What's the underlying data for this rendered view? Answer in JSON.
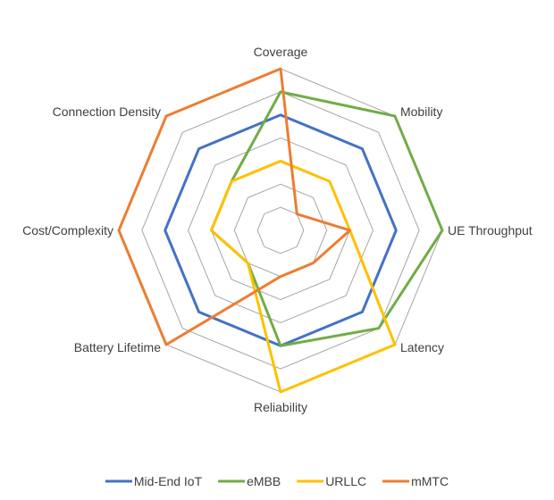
{
  "chart_data": {
    "type": "radar",
    "title": "",
    "axes": [
      "Coverage",
      "Mobility",
      "UE Throughput",
      "Latency",
      "Reliability",
      "Battery Lifetime",
      "Cost/Complexity",
      "Connection Density"
    ],
    "range": [
      0,
      7
    ],
    "rings": 7,
    "grid": true,
    "legend_position": "bottom",
    "series": [
      {
        "name": "Mid-End IoT",
        "color": "#4472C4",
        "values": [
          5,
          5,
          5,
          5,
          5,
          5,
          5,
          5
        ]
      },
      {
        "name": "eMBB",
        "color": "#70AD47",
        "values": [
          6,
          7,
          7,
          6,
          5,
          2,
          3,
          3
        ]
      },
      {
        "name": "URLLC",
        "color": "#FFC000",
        "values": [
          3,
          3,
          3,
          7,
          7,
          2,
          3,
          3
        ]
      },
      {
        "name": "mMTC",
        "color": "#ED7D31",
        "values": [
          7,
          1,
          3,
          2,
          2,
          7,
          7,
          7
        ]
      }
    ]
  }
}
